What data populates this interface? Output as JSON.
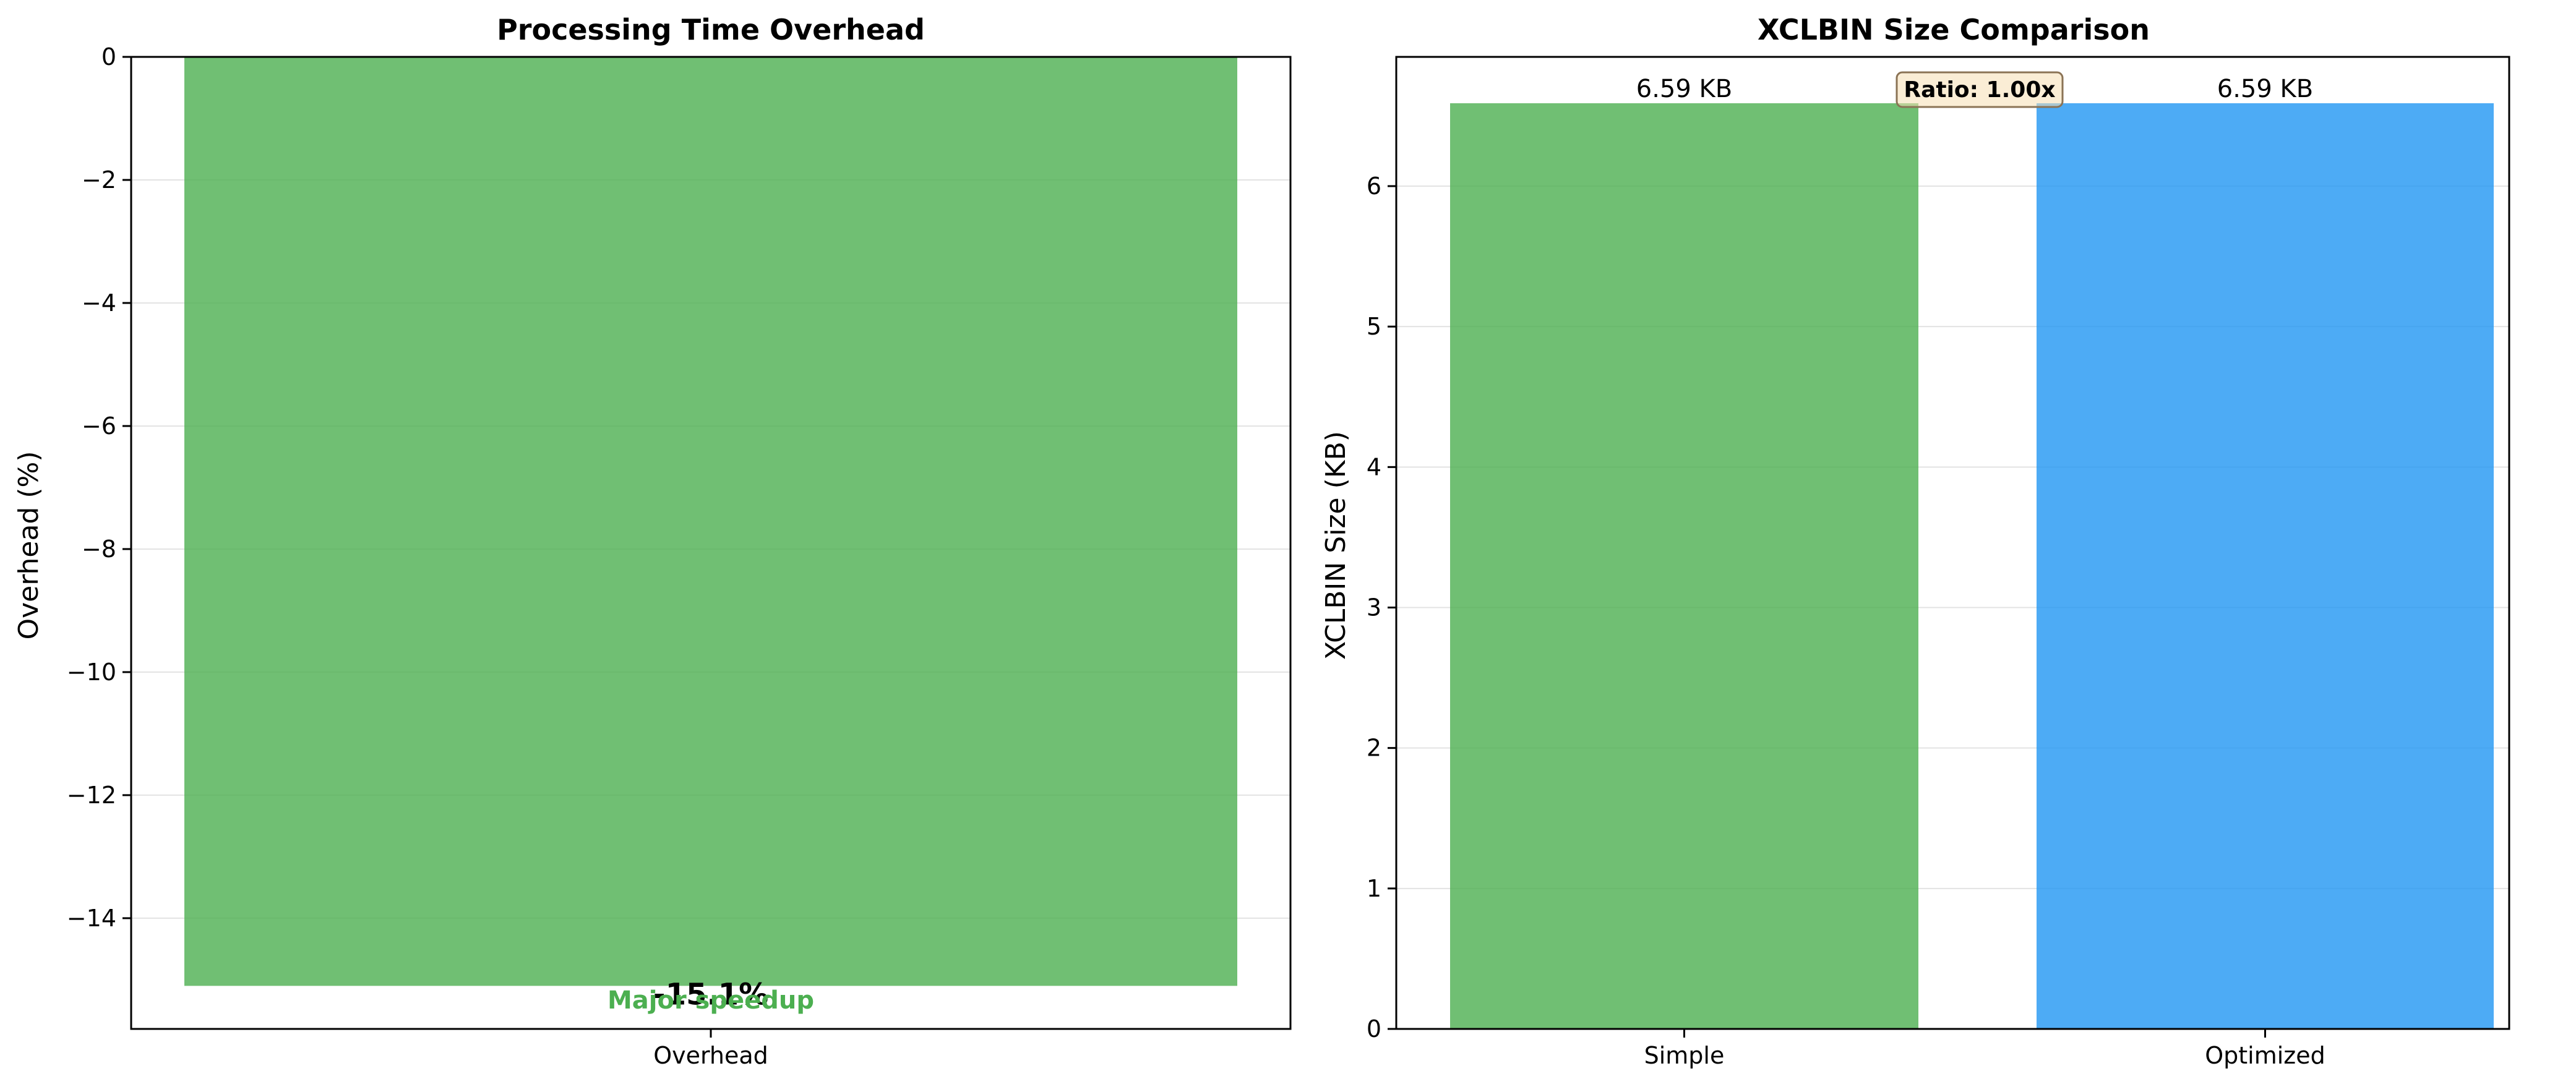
{
  "chart_data": [
    {
      "type": "bar",
      "title": "Processing Time Overhead",
      "xlabel": "",
      "ylabel": "Overhead (%)",
      "categories": [
        "Overhead"
      ],
      "values": [
        -15.1
      ],
      "ylim": [
        -15.8,
        0
      ],
      "yticks": [
        0,
        -2,
        -4,
        -6,
        -8,
        -10,
        -12,
        -14
      ],
      "ytick_labels": [
        "0",
        "−2",
        "−4",
        "−6",
        "−8",
        "−10",
        "−12",
        "−14"
      ],
      "bar_colors": [
        "#4caf50"
      ],
      "bar_labels": [
        "-15.1%"
      ],
      "annotation": "Major speedup",
      "annotation_color": "#4caf50",
      "grid": true
    },
    {
      "type": "bar",
      "title": "XCLBIN Size Comparison",
      "xlabel": "",
      "ylabel": "XCLBIN Size (KB)",
      "categories": [
        "Simple",
        "Optimized"
      ],
      "values": [
        6.59,
        6.59
      ],
      "ylim": [
        0,
        6.92
      ],
      "yticks": [
        0,
        1,
        2,
        3,
        4,
        5,
        6
      ],
      "ytick_labels": [
        "0",
        "1",
        "2",
        "3",
        "4",
        "5",
        "6"
      ],
      "bar_colors": [
        "#4caf50",
        "#2196f3"
      ],
      "bar_labels": [
        "6.59 KB",
        "6.59 KB"
      ],
      "annotation": "Ratio: 1.00x",
      "annotation_box_fill": "#f5deb3",
      "grid": true
    }
  ]
}
